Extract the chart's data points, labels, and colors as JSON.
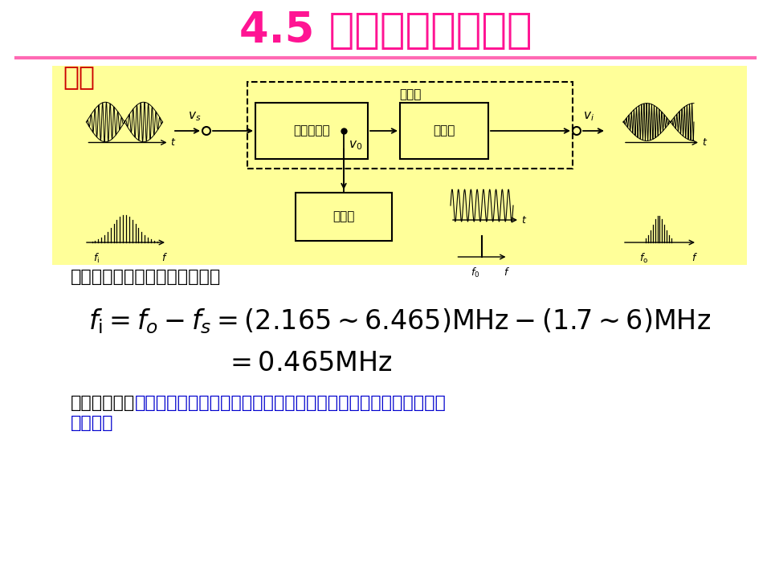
{
  "title": "4.5 变频器的工作原理",
  "title_color": "#FF1493",
  "title_fontsize": 38,
  "subtitle": "举例",
  "subtitle_color": "#CC0000",
  "subtitle_fontsize": 24,
  "bg_color": "#FFFFFF",
  "panel_bg": "#FFFF99",
  "separator_color": "#FF69B4",
  "text1": "经过混频器变频后，输出频率为",
  "formula1": "$f_{\\mathrm{i}} = f_{o} - f_{s} = (2.165{\\sim}6.465)\\mathrm{MHz} - (1.7{\\sim}6)\\mathrm{MHz}$",
  "formula2": "$= 0.465\\mathrm{MHz}$",
  "result_label": "混频的结果：",
  "result_line1": "较高的不同的载波频率变为固定的较低的载波频率，而振幅包络形",
  "result_line2": "状不变。",
  "result_color": "#0000CD",
  "formula_fontsize": 24,
  "text_fontsize": 16,
  "box_label1": "非线性器件",
  "box_label2": "滤波器",
  "box_label3": "振荡器",
  "box_label4": "混频器"
}
